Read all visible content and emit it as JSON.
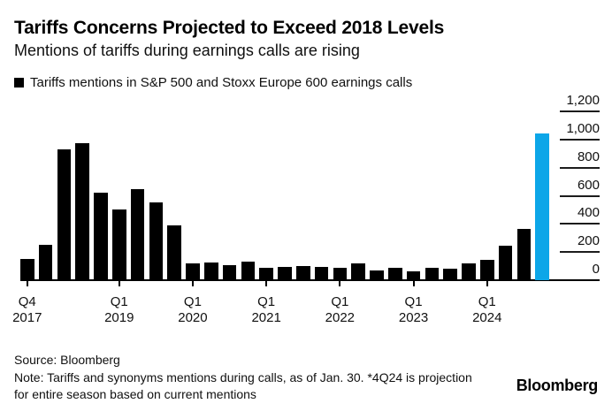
{
  "chart_data": {
    "type": "bar",
    "title": "Tariffs Concerns Projected to Exceed 2018 Levels",
    "subtitle": "Mentions of tariffs during earnings calls are rising",
    "legend_label": "Tariffs mentions in S&P 500 and Stoxx Europe 600 earnings calls",
    "categories": [
      "Q4 2017",
      "Q1 2018",
      "Q2 2018",
      "Q3 2018",
      "Q4 2018",
      "Q1 2019",
      "Q2 2019",
      "Q3 2019",
      "Q4 2019",
      "Q1 2020",
      "Q2 2020",
      "Q3 2020",
      "Q4 2020",
      "Q1 2021",
      "Q2 2021",
      "Q3 2021",
      "Q4 2021",
      "Q1 2022",
      "Q2 2022",
      "Q3 2022",
      "Q4 2022",
      "Q1 2023",
      "Q2 2023",
      "Q3 2023",
      "Q4 2023",
      "Q1 2024",
      "Q2 2024",
      "Q3 2024",
      "Q4 2024 (projection)"
    ],
    "values": [
      150,
      250,
      930,
      975,
      620,
      500,
      650,
      555,
      390,
      120,
      125,
      105,
      130,
      90,
      95,
      100,
      95,
      90,
      120,
      70,
      90,
      60,
      90,
      80,
      120,
      145,
      245,
      365,
      1040
    ],
    "highlight_index": 28,
    "bar_color": "#000000",
    "highlight_color": "#0ca6e8",
    "ylim": [
      0,
      1200
    ],
    "yticks": [
      0,
      200,
      400,
      600,
      800,
      1000,
      1200
    ],
    "ytick_labels": [
      "0",
      "200",
      "400",
      "600",
      "800",
      "1,000",
      "1,200"
    ],
    "y_axis_side": "right",
    "grid": false,
    "legend_position": "top-left",
    "xticks": [
      {
        "index": 0,
        "line1": "Q4",
        "line2": "2017"
      },
      {
        "index": 5,
        "line1": "Q1",
        "line2": "2019"
      },
      {
        "index": 9,
        "line1": "Q1",
        "line2": "2020"
      },
      {
        "index": 13,
        "line1": "Q1",
        "line2": "2021"
      },
      {
        "index": 17,
        "line1": "Q1",
        "line2": "2022"
      },
      {
        "index": 21,
        "line1": "Q1",
        "line2": "2023"
      },
      {
        "index": 25,
        "line1": "Q1",
        "line2": "2024"
      }
    ]
  },
  "footer": {
    "source": "Source: Bloomberg",
    "note": "Note: Tariffs and synonyms mentions during calls, as of Jan. 30. *4Q24 is projection for entire season based on current mentions",
    "logo": "Bloomberg"
  }
}
